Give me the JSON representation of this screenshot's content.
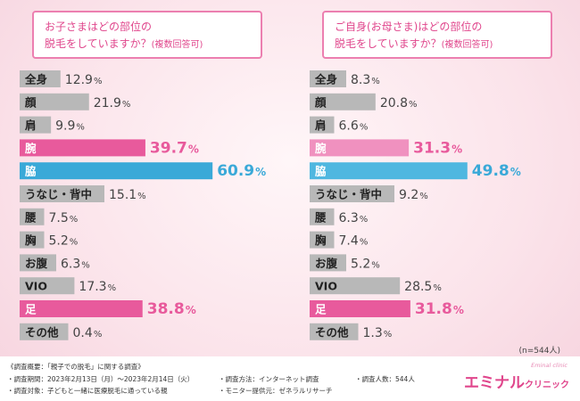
{
  "chart_data": [
    {
      "type": "bar",
      "orientation": "horizontal",
      "title_line1": "お子さまはどの部位の",
      "title_line2": "脱毛をしていますか？",
      "title_note": "(複数回答可)",
      "categories": [
        "全身",
        "顔",
        "肩",
        "腕",
        "脇",
        "うなじ・背中",
        "腰",
        "胸",
        "お腹",
        "VIO",
        "足",
        "その他"
      ],
      "values": [
        12.9,
        21.9,
        9.9,
        39.7,
        60.9,
        15.1,
        7.5,
        5.2,
        6.3,
        17.3,
        38.8,
        0.4
      ],
      "unit": "%",
      "colors": {
        "default": "#b8b8b8",
        "腕": "#e85a9c",
        "脇": "#3aa9d8",
        "足": "#e85a9c"
      }
    },
    {
      "type": "bar",
      "orientation": "horizontal",
      "title_line1": "ご自身(お母さま)はどの部位の",
      "title_line2": "脱毛をしていますか？",
      "title_note": "(複数回答可)",
      "categories": [
        "全身",
        "顔",
        "肩",
        "腕",
        "脇",
        "うなじ・背中",
        "腰",
        "胸",
        "お腹",
        "VIO",
        "足",
        "その他"
      ],
      "values": [
        8.3,
        20.8,
        6.6,
        31.3,
        49.8,
        9.2,
        6.3,
        7.4,
        5.2,
        28.5,
        31.8,
        1.3
      ],
      "unit": "%",
      "colors": {
        "default": "#b8b8b8",
        "腕": "#f091bf",
        "脇": "#4fb7e0",
        "足": "#e85a9c"
      }
    }
  ],
  "sample_note": "(n=544人)",
  "footer": {
    "summary": "《調査概要：「親子での脱毛」に関する調査》",
    "period": "・調査期間：2023年2月13日（月）～2023年2月14日（火）",
    "target": "・調査対象：子どもと一緒に医療脱毛に通っている親",
    "method": "・調査方法：インターネット調査",
    "monitor": "・モニター提供元：ゼネラルリサーチ",
    "people": "・調査人数：544人",
    "logo_main": "エミナル",
    "logo_sub": "クリニック",
    "logo_tag": "Eminal clinic"
  }
}
